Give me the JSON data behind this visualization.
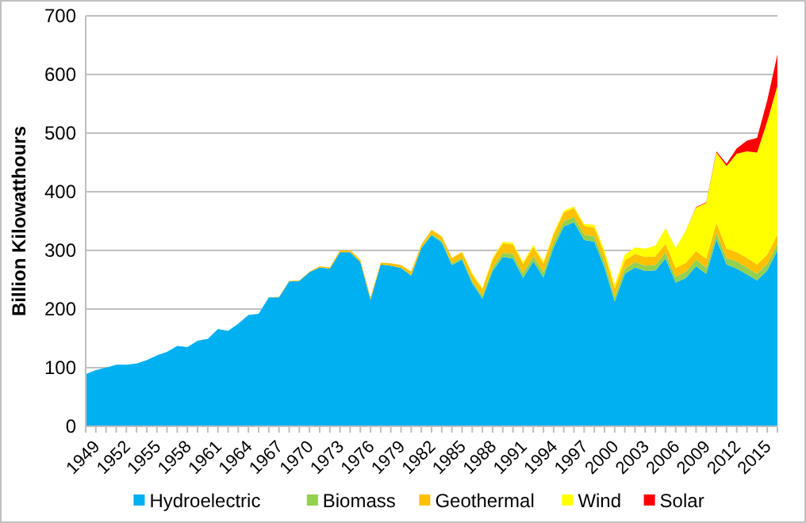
{
  "chart_data": {
    "type": "area",
    "stacked": true,
    "ylabel": "Billion Kilowatthours",
    "categories": [
      "1949",
      null,
      null,
      "1952",
      null,
      null,
      "1955",
      null,
      null,
      "1958",
      null,
      null,
      "1961",
      null,
      null,
      "1964",
      null,
      null,
      "1967",
      null,
      null,
      "1970",
      null,
      null,
      "1973",
      null,
      null,
      "1976",
      null,
      null,
      "1979",
      null,
      null,
      "1982",
      null,
      null,
      "1985",
      null,
      null,
      "1988",
      null,
      null,
      "1991",
      null,
      null,
      "1994",
      null,
      null,
      "1997",
      null,
      null,
      "2000",
      null,
      null,
      "2003",
      null,
      null,
      "2006",
      null,
      null,
      "2009",
      null,
      null,
      "2012",
      null,
      null,
      "2015",
      null,
      null
    ],
    "series": [
      {
        "name": "Hydroelectric",
        "color": "#00b0f0",
        "values": [
          89,
          96,
          100,
          105,
          105,
          107,
          113,
          121,
          127,
          137,
          135,
          146,
          149,
          166,
          163,
          175,
          190,
          192,
          220,
          220,
          247,
          248,
          263,
          271,
          269,
          297,
          297,
          280,
          216,
          276,
          274,
          270,
          257,
          304,
          326,
          314,
          275,
          284,
          244,
          218,
          265,
          289,
          286,
          253,
          281,
          254,
          305,
          341,
          348,
          318,
          315,
          271,
          213,
          260,
          271,
          265,
          266,
          286,
          245,
          253,
          273,
          260,
          319,
          276,
          269,
          259,
          249,
          266,
          300
        ]
      },
      {
        "name": "Biomass",
        "color": "#92d050",
        "values": [
          0,
          0,
          0,
          0,
          0,
          0,
          0,
          0,
          0,
          0,
          0,
          0,
          0,
          0,
          0,
          0,
          0,
          0,
          0,
          0,
          0,
          0,
          0,
          0,
          0,
          0,
          0,
          0,
          0,
          0,
          0,
          0,
          1,
          1,
          2,
          2,
          3,
          3,
          4,
          5,
          6,
          7,
          8,
          8,
          9,
          9,
          9,
          9,
          9,
          9,
          9,
          9,
          8,
          9,
          9,
          9,
          9,
          10,
          10,
          11,
          11,
          11,
          11,
          11,
          12,
          12,
          11,
          11,
          11
        ]
      },
      {
        "name": "Geothermal",
        "color": "#ffc000",
        "values": [
          0,
          0,
          0,
          0,
          0,
          0,
          0,
          0,
          0,
          0,
          0,
          0,
          0,
          0,
          0,
          0,
          0,
          0,
          0,
          1,
          1,
          1,
          1,
          2,
          2,
          3,
          3,
          4,
          4,
          3,
          4,
          5,
          6,
          5,
          7,
          8,
          9,
          10,
          11,
          11,
          14,
          16,
          16,
          16,
          16,
          15,
          13,
          15,
          15,
          15,
          15,
          14,
          14,
          14,
          14,
          15,
          15,
          15,
          15,
          15,
          15,
          15,
          17,
          16,
          16,
          16,
          16,
          16,
          16
        ]
      },
      {
        "name": "Wind",
        "color": "#ffff00",
        "values": [
          0,
          0,
          0,
          0,
          0,
          0,
          0,
          0,
          0,
          0,
          0,
          0,
          0,
          0,
          0,
          0,
          0,
          0,
          0,
          0,
          0,
          0,
          0,
          0,
          0,
          0,
          0,
          0,
          0,
          0,
          0,
          0,
          0,
          0,
          0,
          0,
          0,
          1,
          2,
          2,
          2,
          3,
          3,
          3,
          3,
          3,
          3,
          3,
          3,
          3,
          5,
          6,
          7,
          10,
          11,
          14,
          18,
          27,
          34,
          55,
          74,
          95,
          120,
          141,
          168,
          182,
          191,
          227,
          254
        ]
      },
      {
        "name": "Solar",
        "color": "#ff0000",
        "values": [
          0,
          0,
          0,
          0,
          0,
          0,
          0,
          0,
          0,
          0,
          0,
          0,
          0,
          0,
          0,
          0,
          0,
          0,
          0,
          0,
          0,
          0,
          0,
          0,
          0,
          0,
          0,
          0,
          0,
          0,
          0,
          0,
          0,
          0,
          0,
          0,
          0,
          0,
          0,
          0,
          0,
          0,
          0,
          0,
          0,
          0,
          0,
          0,
          0,
          0,
          0,
          0,
          0,
          0,
          0,
          0,
          0,
          0,
          0,
          0,
          1,
          1,
          2,
          4,
          9,
          18,
          25,
          36,
          53
        ]
      }
    ],
    "ylim": [
      0,
      700
    ],
    "yticks": [
      0,
      100,
      200,
      300,
      400,
      500,
      600,
      700
    ],
    "grid": "y",
    "legend": "bottom"
  }
}
